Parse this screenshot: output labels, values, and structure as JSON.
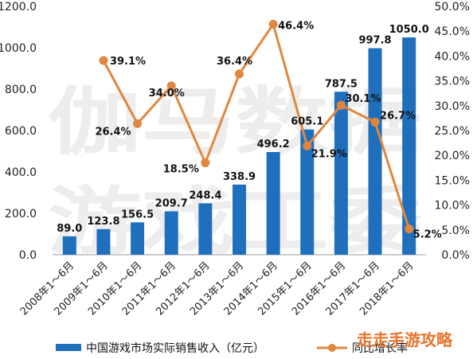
{
  "watermark": {
    "line1": "伽马数据",
    "line2": "游戏工委",
    "corner": "走走手游攻略"
  },
  "legend": {
    "bar_label": "中国游戏市场实际销售收入（亿元）",
    "line_label": "同比增长率"
  },
  "colors": {
    "bar": "#1f6fbd",
    "line": "#e0873f"
  },
  "chart_data": {
    "type": "bar",
    "categories": [
      "2008年1～6月",
      "2009年1～6月",
      "2010年1～6月",
      "2011年1～6月",
      "2012年1～6月",
      "2013年1～6月",
      "2014年1～6月",
      "2015年1～6月",
      "2016年1～6月",
      "2017年1～6月",
      "2018年1～6月"
    ],
    "series": [
      {
        "name": "中国游戏市场实际销售收入（亿元）",
        "type": "bar",
        "axis": "left",
        "values": [
          89.0,
          123.8,
          156.5,
          209.7,
          248.4,
          338.9,
          496.2,
          605.1,
          787.5,
          997.8,
          1050.0
        ],
        "labels": [
          "89.0",
          "123.8",
          "156.5",
          "209.7",
          "248.4",
          "338.9",
          "496.2",
          "605.1",
          "787.5",
          "997.8",
          "1050.0"
        ]
      },
      {
        "name": "同比增长率",
        "type": "line",
        "axis": "right",
        "values": [
          null,
          39.1,
          26.4,
          34.0,
          18.5,
          36.4,
          46.4,
          21.9,
          30.1,
          26.7,
          5.2
        ],
        "labels": [
          null,
          "39.1%",
          "26.4%",
          "34.0%",
          "18.5%",
          "36.4%",
          "46.4%",
          "21.9%",
          "30.1%",
          "26.7%",
          "5.2%"
        ]
      }
    ],
    "ylim": [
      0,
      1200
    ],
    "yticks": [
      "0.0",
      "200.0",
      "400.0",
      "600.0",
      "800.0",
      "1000.0",
      "1200.0"
    ],
    "y2lim": [
      0,
      50
    ],
    "y2ticks": [
      "0.0%",
      "5.0%",
      "10.0%",
      "15.0%",
      "20.0%",
      "25.0%",
      "30.0%",
      "35.0%",
      "40.0%",
      "45.0%",
      "50.0%"
    ],
    "legend_position": "bottom",
    "grid": false
  }
}
